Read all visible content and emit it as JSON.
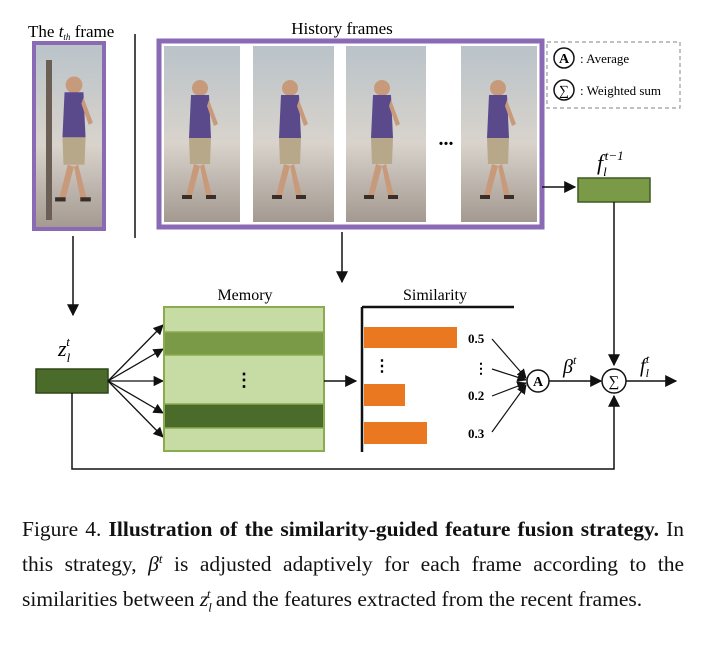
{
  "figure": {
    "tth_frame_label": {
      "pre": "The ",
      "sub": "th",
      "italic": "t",
      "post": " frame"
    },
    "history_label": "History frames",
    "history_ellipsis": "...",
    "legend": {
      "average_symbol": "A",
      "average_label": ": Average",
      "weighted_symbol": "∑",
      "weighted_label": ": Weighted sum"
    },
    "memory_label": "Memory",
    "memory_ellipsis": "⋮",
    "similarity_label": "Similarity",
    "similarity_ellipsis": "⋮",
    "similarity_values": [
      "0.5",
      "⋮",
      "0.2",
      "0.3"
    ],
    "node_average": "A",
    "node_sum": "∑",
    "symbols": {
      "z": "z",
      "z_sub": "l",
      "z_sup": "t",
      "f_prev": "f",
      "f_prev_sub": "l",
      "f_prev_sup": "t−1",
      "beta": "β",
      "beta_sup": "t",
      "f_out": "f",
      "f_out_sub": "l",
      "f_out_sup": "t"
    },
    "colors": {
      "purple_border": "#8b6ab5",
      "dark_green": "#4a6b2a",
      "mid_green": "#7a9a47",
      "light_green": "#c7dba5",
      "green_border": "#8aab4e",
      "orange": "#e97820",
      "shirt": "#5a4a8c"
    }
  },
  "caption": {
    "label": "Figure 4.",
    "bold": "Illustration of the similarity-guided feature fusion strategy.",
    "text1": " In this strategy, ",
    "beta": "β",
    "beta_sup": "t",
    "text2": " is adjusted adaptively for each frame according to the similarities between ",
    "z": "z",
    "z_sub": "l",
    "z_sup": "t",
    "text3": " and the features extracted from the recent frames."
  }
}
